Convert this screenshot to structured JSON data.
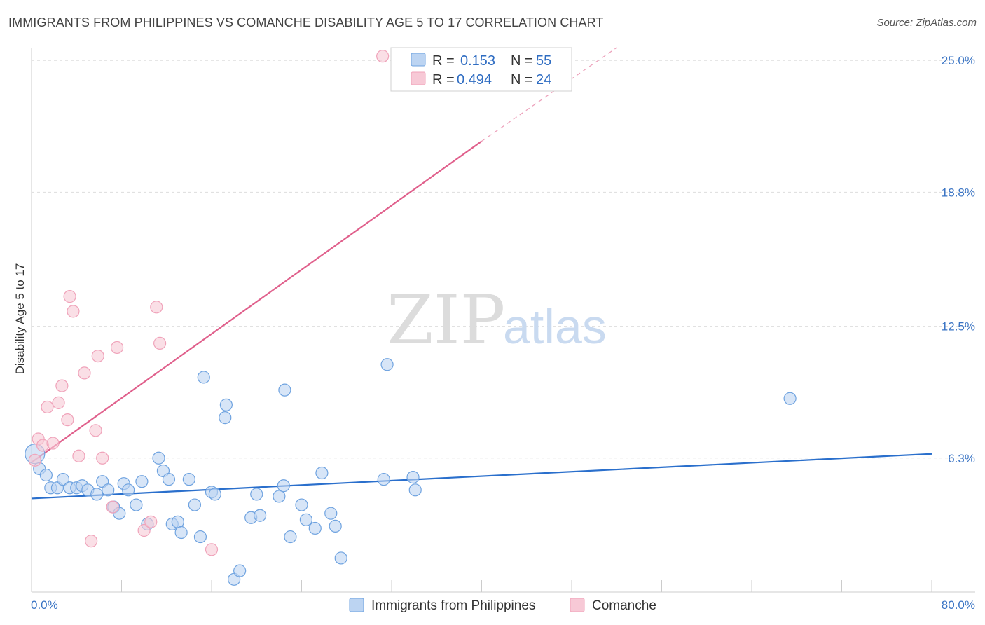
{
  "header": {
    "title": "IMMIGRANTS FROM PHILIPPINES VS COMANCHE DISABILITY AGE 5 TO 17 CORRELATION CHART",
    "source": "Source: ZipAtlas.com"
  },
  "watermark": {
    "zip": "ZIP",
    "atlas": "atlas"
  },
  "chart_data": {
    "type": "scatter",
    "title": "IMMIGRANTS FROM PHILIPPINES VS COMANCHE DISABILITY AGE 5 TO 17 CORRELATION CHART",
    "ylabel": "Disability Age 5 to 17",
    "xlabel": "",
    "xlim": [
      0,
      80
    ],
    "ylim": [
      0,
      25.6
    ],
    "x_tick_labels": [
      "0.0%",
      "80.0%"
    ],
    "y_ticks": [
      {
        "value": 6.3,
        "label": "6.3%"
      },
      {
        "value": 12.5,
        "label": "12.5%"
      },
      {
        "value": 18.8,
        "label": "18.8%"
      },
      {
        "value": 25.0,
        "label": "25.0%"
      }
    ],
    "grid": "horizontal dashed",
    "legend": {
      "placement": "top-center",
      "rows": [
        {
          "r_label": "R =",
          "r_value": "0.153",
          "n_label": "N =",
          "n_value": "55"
        },
        {
          "r_label": "R =",
          "r_value": "0.494",
          "n_label": "N =",
          "n_value": "24"
        }
      ]
    },
    "series": [
      {
        "name": "Immigrants from Philippines",
        "color": "#6fa3e0",
        "fill": "#bcd4f2",
        "line_color": "#2a6fcc",
        "trend": {
          "x0": 0,
          "y0": 4.4,
          "x1": 80,
          "y1": 6.5
        },
        "points": [
          [
            0.3,
            6.5
          ],
          [
            0.7,
            5.8
          ],
          [
            1.3,
            5.5
          ],
          [
            1.7,
            4.9
          ],
          [
            2.3,
            4.9
          ],
          [
            2.8,
            5.3
          ],
          [
            3.4,
            4.9
          ],
          [
            4.0,
            4.9
          ],
          [
            4.5,
            5.0
          ],
          [
            5.0,
            4.8
          ],
          [
            5.8,
            4.6
          ],
          [
            6.3,
            5.2
          ],
          [
            6.8,
            4.8
          ],
          [
            7.3,
            4.0
          ],
          [
            7.8,
            3.7
          ],
          [
            8.2,
            5.1
          ],
          [
            8.6,
            4.8
          ],
          [
            9.3,
            4.1
          ],
          [
            9.8,
            5.2
          ],
          [
            10.3,
            3.2
          ],
          [
            11.3,
            6.3
          ],
          [
            11.7,
            5.7
          ],
          [
            12.2,
            5.3
          ],
          [
            12.5,
            3.2
          ],
          [
            13.0,
            3.3
          ],
          [
            13.3,
            2.8
          ],
          [
            14.0,
            5.3
          ],
          [
            14.5,
            4.1
          ],
          [
            15.0,
            2.6
          ],
          [
            15.3,
            10.1
          ],
          [
            16.0,
            4.7
          ],
          [
            16.3,
            4.6
          ],
          [
            17.2,
            8.2
          ],
          [
            17.3,
            8.8
          ],
          [
            18.0,
            0.6
          ],
          [
            18.5,
            1.0
          ],
          [
            19.5,
            3.5
          ],
          [
            20.0,
            4.6
          ],
          [
            20.3,
            3.6
          ],
          [
            22.0,
            4.5
          ],
          [
            22.4,
            5.0
          ],
          [
            22.5,
            9.5
          ],
          [
            23.0,
            2.6
          ],
          [
            24.0,
            4.1
          ],
          [
            24.4,
            3.4
          ],
          [
            25.2,
            3.0
          ],
          [
            25.8,
            5.6
          ],
          [
            26.6,
            3.7
          ],
          [
            27.0,
            3.1
          ],
          [
            27.5,
            1.6
          ],
          [
            31.3,
            5.3
          ],
          [
            31.6,
            10.7
          ],
          [
            33.9,
            5.4
          ],
          [
            34.1,
            4.8
          ],
          [
            67.4,
            9.1
          ]
        ]
      },
      {
        "name": "Comanche",
        "color": "#f0a3ba",
        "fill": "#f7c9d6",
        "line_color": "#e0608c",
        "trend": {
          "x0": 0,
          "y0": 6.1,
          "x1": 40,
          "y1": 21.2
        },
        "trend_dashed_to": {
          "x1": 52,
          "y1": 25.6
        },
        "points": [
          [
            0.3,
            6.2
          ],
          [
            0.6,
            7.2
          ],
          [
            1.0,
            6.9
          ],
          [
            1.4,
            8.7
          ],
          [
            1.9,
            7.0
          ],
          [
            2.4,
            8.9
          ],
          [
            2.7,
            9.7
          ],
          [
            3.2,
            8.1
          ],
          [
            3.4,
            13.9
          ],
          [
            3.7,
            13.2
          ],
          [
            4.2,
            6.4
          ],
          [
            4.7,
            10.3
          ],
          [
            5.3,
            2.4
          ],
          [
            5.7,
            7.6
          ],
          [
            5.9,
            11.1
          ],
          [
            6.3,
            6.3
          ],
          [
            7.2,
            4.0
          ],
          [
            7.6,
            11.5
          ],
          [
            10.0,
            2.9
          ],
          [
            10.6,
            3.3
          ],
          [
            11.1,
            13.4
          ],
          [
            11.4,
            11.7
          ],
          [
            16.0,
            2.0
          ],
          [
            31.2,
            25.2
          ]
        ]
      }
    ]
  }
}
